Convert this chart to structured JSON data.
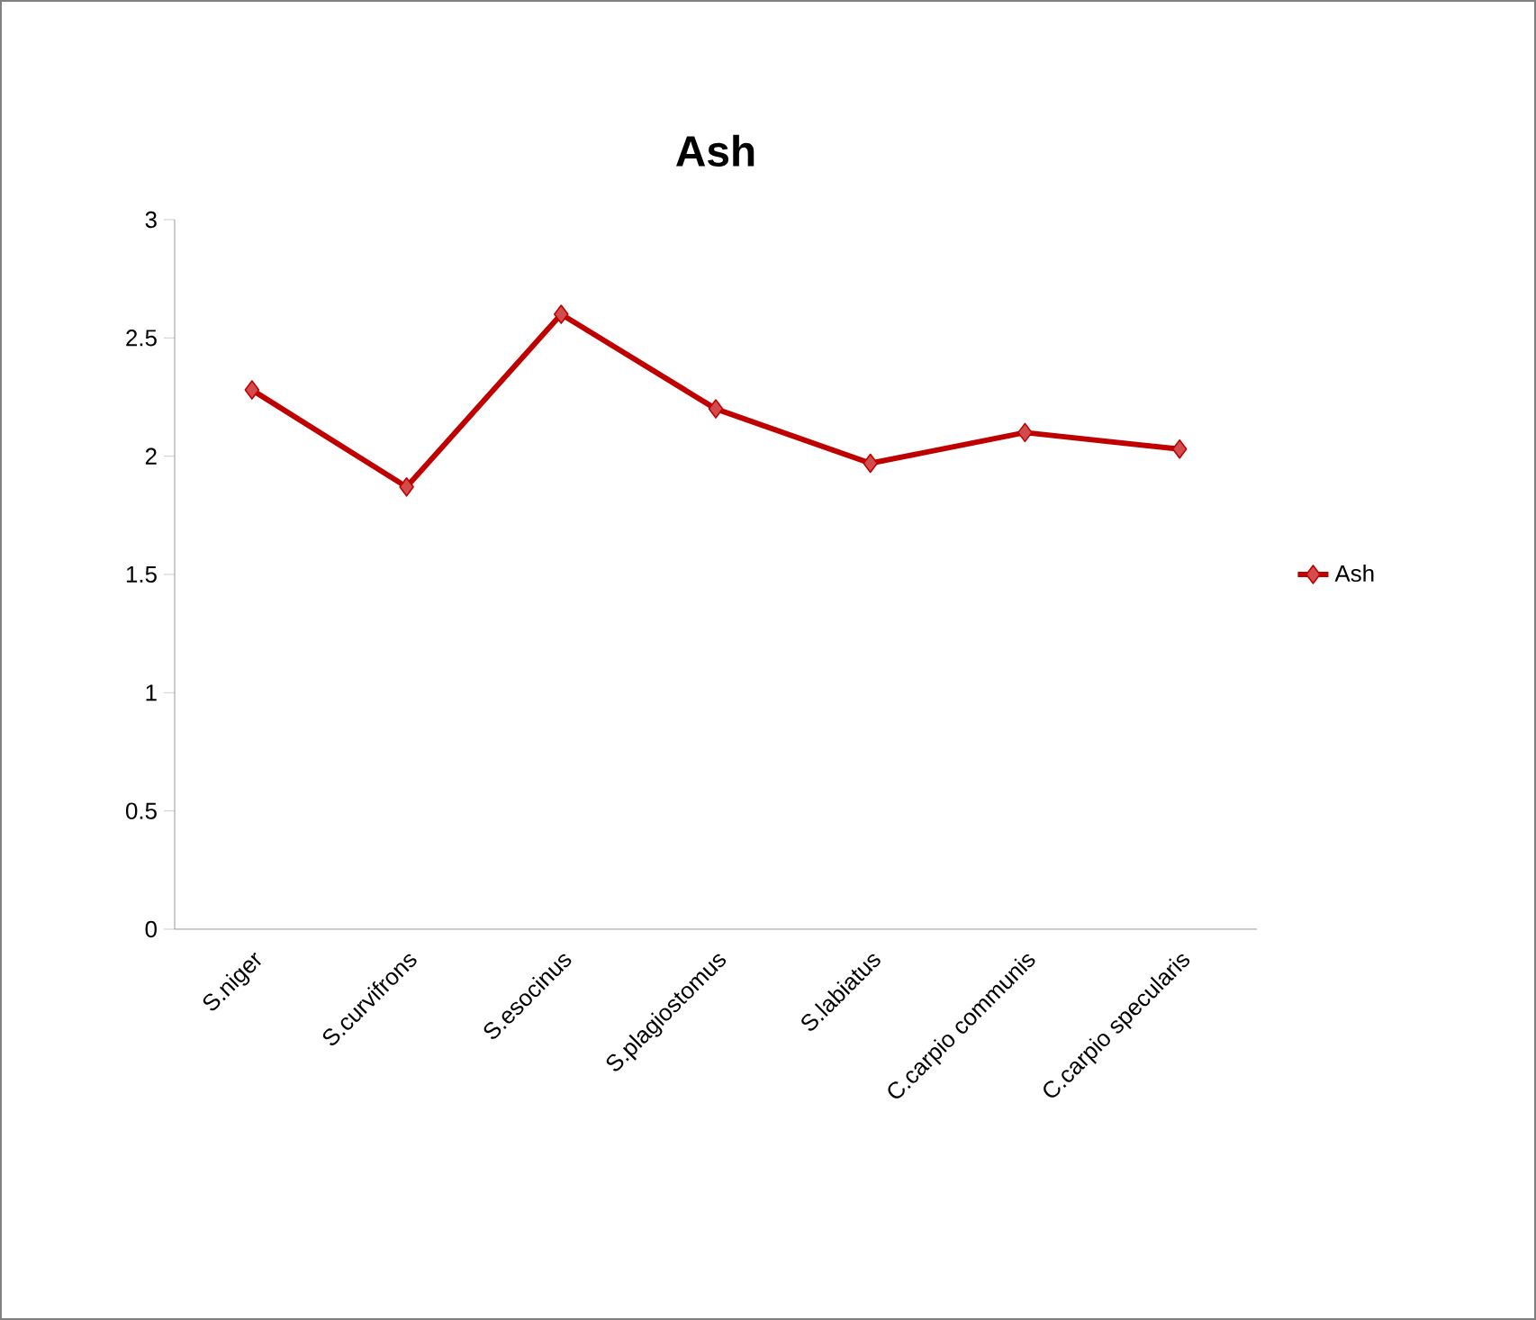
{
  "chart_data": {
    "type": "line",
    "title": "Ash",
    "categories": [
      "S.niger",
      "S.curvifrons",
      "S.esocinus",
      "S.plagiostomus",
      "S.labiatus",
      "C.carpio communis",
      "C.carpio specularis"
    ],
    "series": [
      {
        "name": "Ash",
        "color": "#c00000",
        "values": [
          2.28,
          1.87,
          2.6,
          2.2,
          1.97,
          2.1,
          2.03
        ]
      }
    ],
    "ylim": [
      0,
      3
    ],
    "yticks": [
      0,
      0.5,
      1,
      1.5,
      2,
      2.5,
      3
    ],
    "legend": "right",
    "marker": "diamond",
    "line_style": "solid"
  }
}
